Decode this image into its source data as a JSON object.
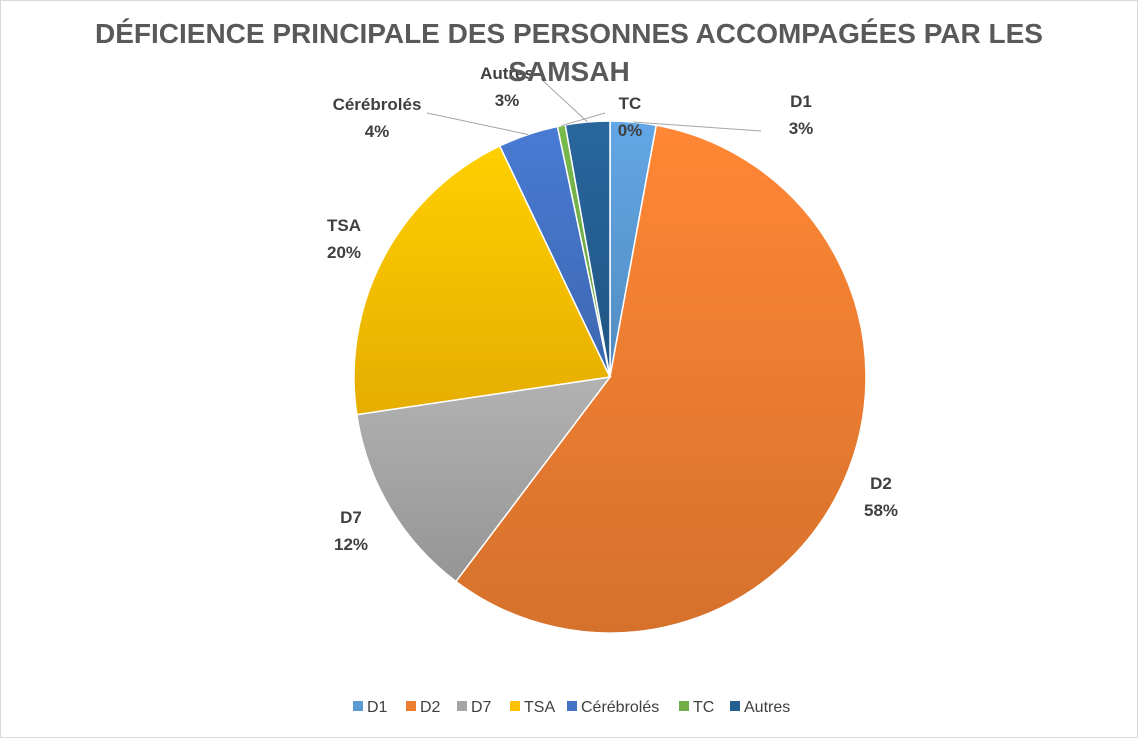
{
  "chart_data": {
    "type": "pie",
    "title_line1": "DÉFICIENCE PRINCIPALE DES PERSONNES ACCOMPAGÉES PAR LES",
    "title_line2": "SAMSAH",
    "categories": [
      "D1",
      "D2",
      "D7",
      "TSA",
      "Cérébrolés",
      "TC",
      "Autres"
    ],
    "values": [
      2.9,
      57.5,
      12.4,
      20.3,
      3.8,
      0.5,
      2.8
    ],
    "percent_labels": [
      "3%",
      "58%",
      "12%",
      "20%",
      "4%",
      "0%",
      "3%"
    ],
    "colors": [
      "#5B9BD5",
      "#ED7D31",
      "#A5A5A5",
      "#FFC000",
      "#4472C4",
      "#70AD47",
      "#255E91"
    ],
    "legend_position": "bottom"
  }
}
